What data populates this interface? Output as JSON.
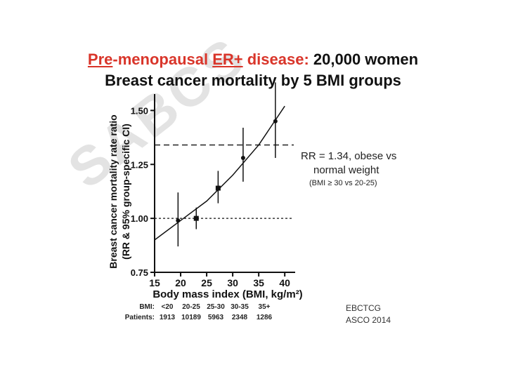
{
  "title": {
    "line1_part1": "Pre",
    "line1_part2": "-menopausal ",
    "line1_part3": "ER+",
    "line1_part4": " disease: ",
    "line1_part5": "20,000 women",
    "line2": "Breast cancer mortality by 5 BMI groups"
  },
  "watermark": "SABCS",
  "annotation": {
    "rr_line1": "RR = 1.34, obese vs",
    "rr_line2": "normal weight",
    "rr_line3": "(BMI ≥ 30 vs 20-25)"
  },
  "source": {
    "line1": "EBCTCG",
    "line2": "ASCO 2014"
  },
  "table": {
    "bmi_label": "BMI:",
    "patients_label": "Patients:",
    "bmi_groups": [
      "<20",
      "20-25",
      "25-30",
      "30-35",
      "35+"
    ],
    "patients": [
      "1913",
      "10189",
      "5963",
      "2348",
      "1286"
    ]
  },
  "colors": {
    "accent": "#d9352a",
    "watermark": "#e3e3e3",
    "ink": "#111111"
  },
  "chart_data": {
    "type": "scatter",
    "xlabel": "Body mass index (BMI, kg/m²)",
    "ylabel_line1": "Breast cancer mortality rate ratio",
    "ylabel_line2": "(RR & 95% group-specific CI)",
    "xlim": [
      15,
      42
    ],
    "ylim": [
      0.75,
      1.55
    ],
    "x_ticks": [
      15,
      20,
      25,
      30,
      35,
      40
    ],
    "y_ticks": [
      0.75,
      1.0,
      1.25,
      1.5
    ],
    "y_tick_labels": [
      "0.75",
      "1.00",
      "1.25",
      "1.50"
    ],
    "points": [
      {
        "x": 19.5,
        "y": 0.99,
        "lo": 0.87,
        "hi": 1.12,
        "marker": "circle"
      },
      {
        "x": 23.0,
        "y": 1.0,
        "lo": 0.95,
        "hi": 1.05,
        "marker": "square"
      },
      {
        "x": 27.2,
        "y": 1.14,
        "lo": 1.07,
        "hi": 1.22,
        "marker": "square"
      },
      {
        "x": 32.0,
        "y": 1.28,
        "lo": 1.17,
        "hi": 1.42,
        "marker": "circle"
      },
      {
        "x": 38.2,
        "y": 1.45,
        "lo": 1.28,
        "hi": 1.64,
        "marker": "circle"
      }
    ],
    "trend": [
      [
        15,
        0.9
      ],
      [
        20,
        0.99
      ],
      [
        25,
        1.08
      ],
      [
        30,
        1.2
      ],
      [
        35,
        1.34
      ],
      [
        40,
        1.52
      ]
    ],
    "ref_lines": [
      {
        "y": 1.0,
        "style": "dotted"
      },
      {
        "y": 1.34,
        "style": "dashed"
      }
    ]
  }
}
